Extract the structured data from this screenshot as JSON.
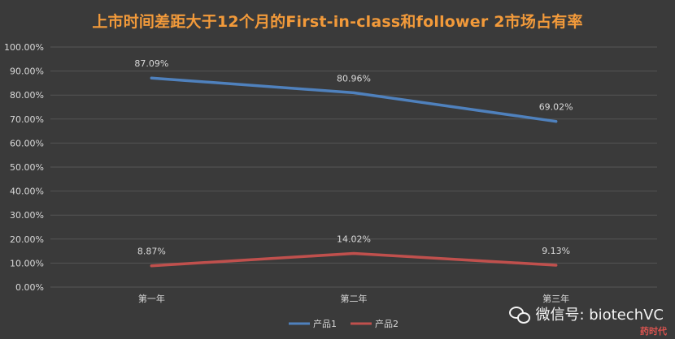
{
  "chart_data": {
    "type": "line",
    "title": "上市时间差距大于12个月的First-in-class和follower 2市场占有率",
    "categories": [
      "第一年",
      "第二年",
      "第三年"
    ],
    "series": [
      {
        "name": "产品1",
        "values": [
          87.09,
          80.96,
          69.02
        ],
        "labels": [
          "87.09%",
          "80.96%",
          "69.02%"
        ],
        "color": "#4f81bd"
      },
      {
        "name": "产品2",
        "values": [
          8.87,
          14.02,
          9.13
        ],
        "labels": [
          "8.87%",
          "14.02%",
          "9.13%"
        ],
        "color": "#c0504d"
      }
    ],
    "ylim": [
      0,
      100
    ],
    "yticks": [
      "0.00%",
      "10.00%",
      "20.00%",
      "30.00%",
      "40.00%",
      "50.00%",
      "60.00%",
      "70.00%",
      "80.00%",
      "90.00%",
      "100.00%"
    ],
    "grid": true,
    "legend_position": "bottom",
    "background_color": "#3a3a3a",
    "title_color": "#f29a3a",
    "gridline_color": "#555555",
    "text_color": "#d9d9d9"
  },
  "watermark": {
    "text": "微信号: biotechVC",
    "icon": "wechat-icon",
    "seal_text": "药时代"
  }
}
